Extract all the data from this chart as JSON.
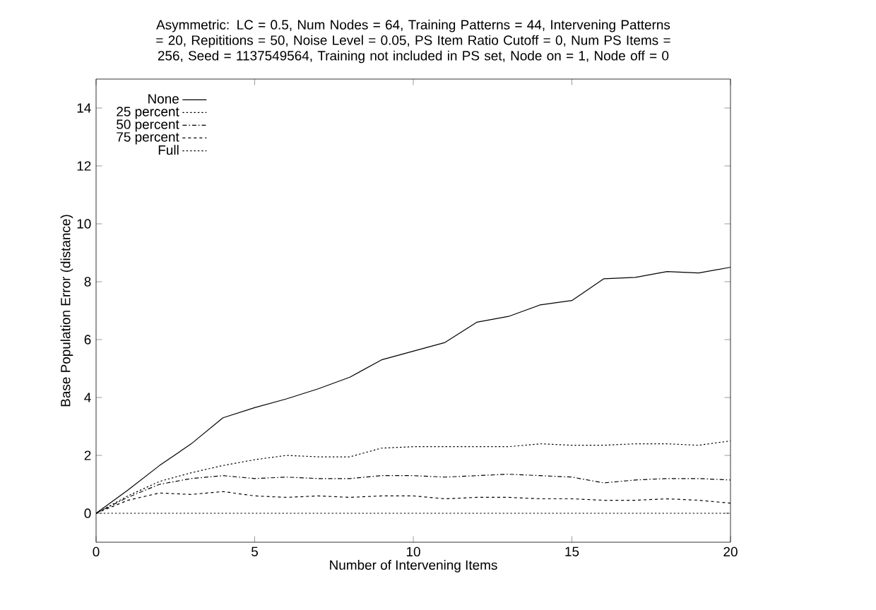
{
  "chart_data": {
    "type": "line",
    "title": "Asymmetric: LC = 0.5, Num Nodes = 64, Training Patterns = 44, Intervening Patterns = 20, Repititions = 50, Noise Level = 0.05, PS Item Ratio Cutoff = 0, Num PS Items = 256, Seed = 1137549564, Training not included in PS set, Node on = 1, Node off = 0",
    "xlabel": "Number of Intervening Items",
    "ylabel": "Base Population Error (distance)",
    "x": [
      0,
      1,
      2,
      3,
      4,
      5,
      6,
      7,
      8,
      9,
      10,
      11,
      12,
      13,
      14,
      15,
      16,
      17,
      18,
      19,
      20
    ],
    "xlim": [
      0,
      20
    ],
    "xticks": [
      0,
      5,
      10,
      15,
      20
    ],
    "ylim": [
      -1,
      15
    ],
    "yticks": [
      0,
      2,
      4,
      6,
      8,
      10,
      12,
      14
    ],
    "legend": "top left",
    "grid": false,
    "marker": "none",
    "series": [
      {
        "name": "None",
        "color": "#000000",
        "line_style": "solid",
        "values": [
          0,
          0.8,
          1.65,
          2.4,
          3.3,
          3.65,
          3.95,
          4.3,
          4.7,
          5.3,
          5.6,
          5.9,
          6.6,
          6.8,
          7.2,
          7.35,
          8.1,
          8.15,
          8.35,
          8.3,
          8.5
        ]
      },
      {
        "name": "25 percent",
        "color": "#000000",
        "line_style": "dotted",
        "values": [
          0,
          0.6,
          1.1,
          1.4,
          1.65,
          1.85,
          2.0,
          1.95,
          1.95,
          2.25,
          2.3,
          2.3,
          2.3,
          2.3,
          2.4,
          2.35,
          2.35,
          2.4,
          2.4,
          2.35,
          2.5
        ]
      },
      {
        "name": "50 percent",
        "color": "#000000",
        "line_style": "dashdot",
        "values": [
          0,
          0.55,
          1.0,
          1.2,
          1.3,
          1.2,
          1.25,
          1.2,
          1.2,
          1.3,
          1.3,
          1.25,
          1.3,
          1.35,
          1.3,
          1.25,
          1.05,
          1.15,
          1.2,
          1.2,
          1.15
        ]
      },
      {
        "name": "75 percent",
        "color": "#000000",
        "line_style": "dashed",
        "values": [
          0,
          0.45,
          0.7,
          0.65,
          0.75,
          0.6,
          0.55,
          0.6,
          0.55,
          0.6,
          0.6,
          0.5,
          0.55,
          0.55,
          0.5,
          0.5,
          0.45,
          0.45,
          0.5,
          0.45,
          0.35
        ]
      },
      {
        "name": "Full",
        "color": "#000000",
        "line_style": "dotted",
        "values": [
          0,
          0,
          0,
          0,
          0,
          0,
          0,
          0,
          0,
          0,
          0,
          0,
          0,
          0,
          0,
          0,
          0,
          0,
          0,
          0,
          0
        ]
      }
    ]
  }
}
